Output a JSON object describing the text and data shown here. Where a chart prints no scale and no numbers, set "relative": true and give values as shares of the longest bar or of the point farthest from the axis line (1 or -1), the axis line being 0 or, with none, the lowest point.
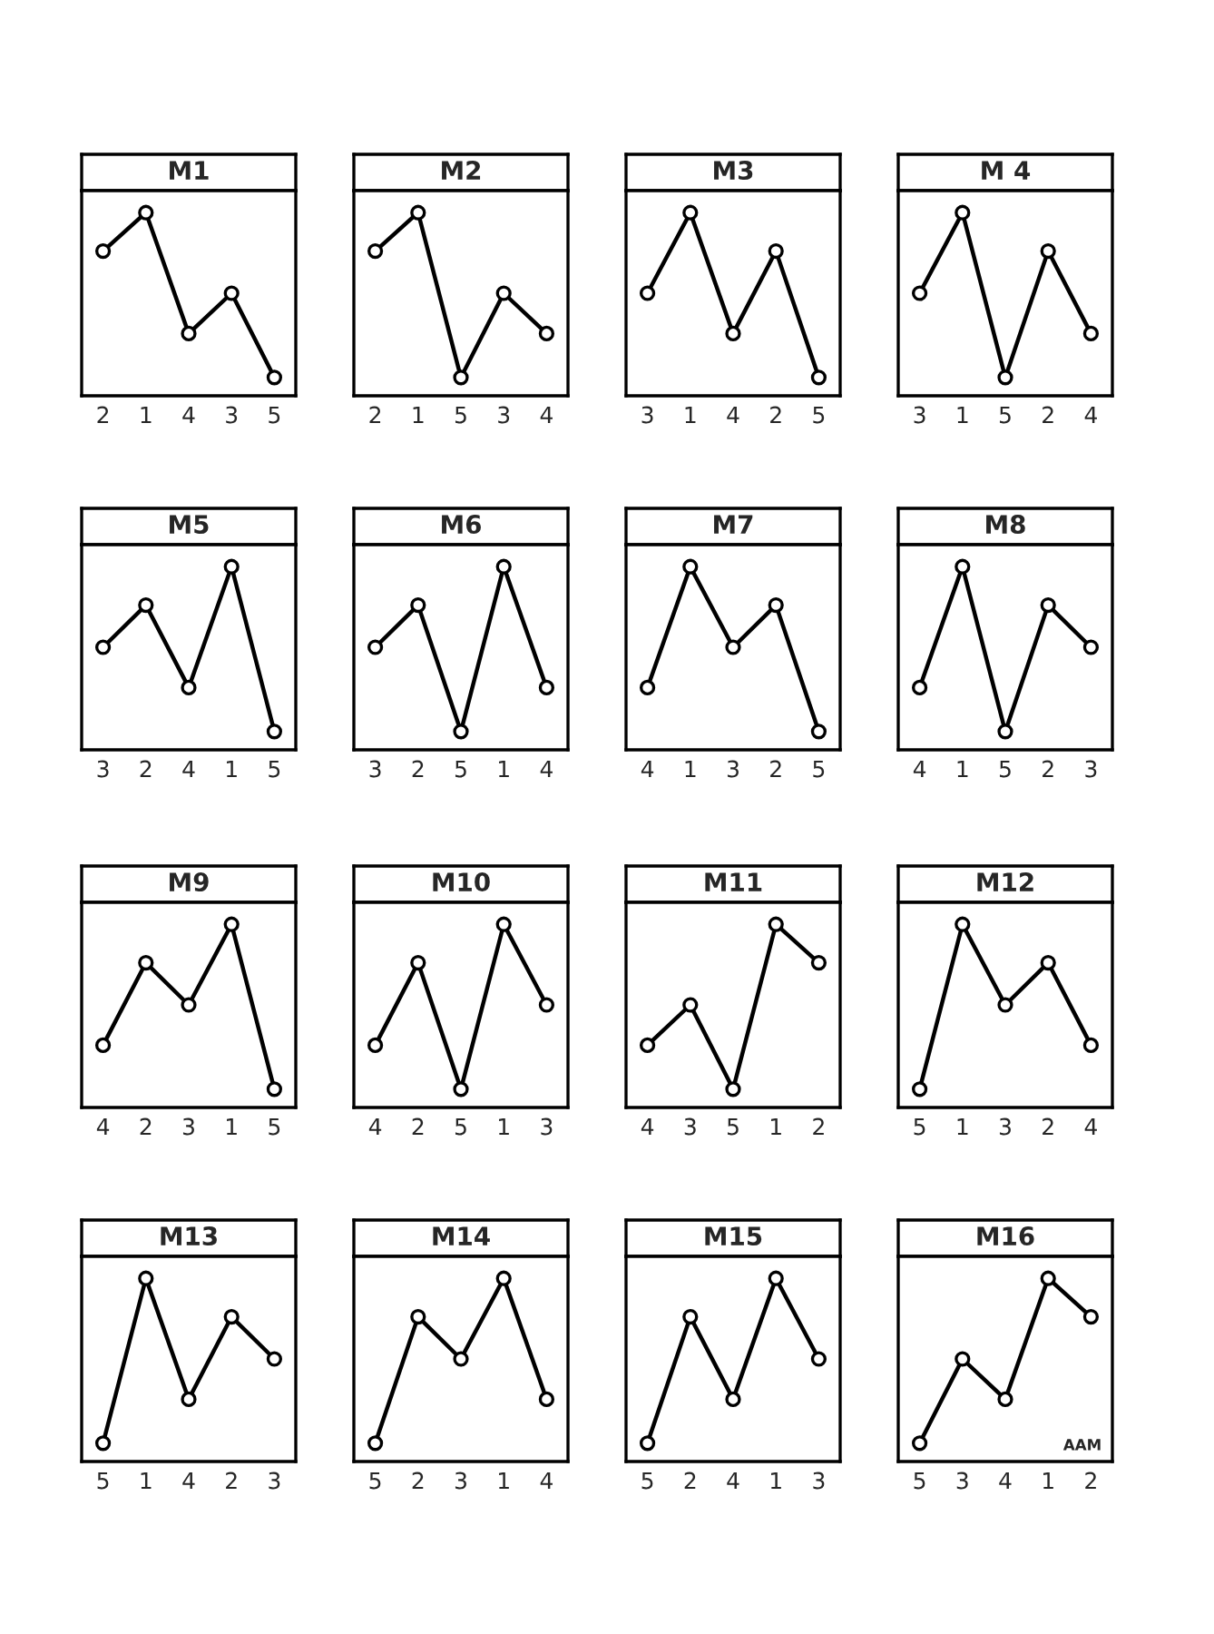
{
  "chart_data": [
    {
      "type": "line",
      "title": "M1",
      "categories": [
        "2",
        "1",
        "4",
        "3",
        "5"
      ],
      "relative": true,
      "tick_labels": "x",
      "marker": "circle",
      "series": [
        {
          "color": "#000000",
          "values": [
            0.79,
            1.0,
            0.34,
            0.56,
            0.1
          ]
        }
      ]
    },
    {
      "type": "line",
      "title": "M2",
      "categories": [
        "2",
        "1",
        "5",
        "3",
        "4"
      ],
      "relative": true,
      "tick_labels": "x",
      "marker": "circle",
      "series": [
        {
          "color": "#000000",
          "values": [
            0.79,
            1.0,
            0.1,
            0.56,
            0.34
          ]
        }
      ]
    },
    {
      "type": "line",
      "title": "M3",
      "categories": [
        "3",
        "1",
        "4",
        "2",
        "5"
      ],
      "relative": true,
      "tick_labels": "x",
      "marker": "circle",
      "series": [
        {
          "color": "#000000",
          "values": [
            0.56,
            1.0,
            0.34,
            0.79,
            0.1
          ]
        }
      ]
    },
    {
      "type": "line",
      "title": "M 4",
      "categories": [
        "3",
        "1",
        "5",
        "2",
        "4"
      ],
      "relative": true,
      "tick_labels": "x",
      "marker": "circle",
      "series": [
        {
          "color": "#000000",
          "values": [
            0.56,
            1.0,
            0.1,
            0.79,
            0.34
          ]
        }
      ]
    },
    {
      "type": "line",
      "title": "M5",
      "categories": [
        "3",
        "2",
        "4",
        "1",
        "5"
      ],
      "relative": true,
      "tick_labels": "x",
      "marker": "circle",
      "series": [
        {
          "color": "#000000",
          "values": [
            0.56,
            0.79,
            0.34,
            1.0,
            0.1
          ]
        }
      ]
    },
    {
      "type": "line",
      "title": "M6",
      "categories": [
        "3",
        "2",
        "5",
        "1",
        "4"
      ],
      "relative": true,
      "tick_labels": "x",
      "marker": "circle",
      "series": [
        {
          "color": "#000000",
          "values": [
            0.56,
            0.79,
            0.1,
            1.0,
            0.34
          ]
        }
      ]
    },
    {
      "type": "line",
      "title": "M7",
      "categories": [
        "4",
        "1",
        "3",
        "2",
        "5"
      ],
      "relative": true,
      "tick_labels": "x",
      "marker": "circle",
      "series": [
        {
          "color": "#000000",
          "values": [
            0.34,
            1.0,
            0.56,
            0.79,
            0.1
          ]
        }
      ]
    },
    {
      "type": "line",
      "title": "M8",
      "categories": [
        "4",
        "1",
        "5",
        "2",
        "3"
      ],
      "relative": true,
      "tick_labels": "x",
      "marker": "circle",
      "series": [
        {
          "color": "#000000",
          "values": [
            0.34,
            1.0,
            0.1,
            0.79,
            0.56
          ]
        }
      ]
    },
    {
      "type": "line",
      "title": "M9",
      "categories": [
        "4",
        "2",
        "3",
        "1",
        "5"
      ],
      "relative": true,
      "tick_labels": "x",
      "marker": "circle",
      "series": [
        {
          "color": "#000000",
          "values": [
            0.34,
            0.79,
            0.56,
            1.0,
            0.1
          ]
        }
      ]
    },
    {
      "type": "line",
      "title": "M10",
      "categories": [
        "4",
        "2",
        "5",
        "1",
        "3"
      ],
      "relative": true,
      "tick_labels": "x",
      "marker": "circle",
      "series": [
        {
          "color": "#000000",
          "values": [
            0.34,
            0.79,
            0.1,
            1.0,
            0.56
          ]
        }
      ]
    },
    {
      "type": "line",
      "title": "M11",
      "categories": [
        "4",
        "3",
        "5",
        "1",
        "2"
      ],
      "relative": true,
      "tick_labels": "x",
      "marker": "circle",
      "series": [
        {
          "color": "#000000",
          "values": [
            0.34,
            0.56,
            0.1,
            1.0,
            0.79
          ]
        }
      ]
    },
    {
      "type": "line",
      "title": "M12",
      "categories": [
        "5",
        "1",
        "3",
        "2",
        "4"
      ],
      "relative": true,
      "tick_labels": "x",
      "marker": "circle",
      "series": [
        {
          "color": "#000000",
          "values": [
            0.1,
            1.0,
            0.56,
            0.79,
            0.34
          ]
        }
      ]
    },
    {
      "type": "line",
      "title": "M13",
      "categories": [
        "5",
        "1",
        "4",
        "2",
        "3"
      ],
      "relative": true,
      "tick_labels": "x",
      "marker": "circle",
      "series": [
        {
          "color": "#000000",
          "values": [
            0.1,
            1.0,
            0.34,
            0.79,
            0.56
          ]
        }
      ]
    },
    {
      "type": "line",
      "title": "M14",
      "categories": [
        "5",
        "2",
        "3",
        "1",
        "4"
      ],
      "relative": true,
      "tick_labels": "x",
      "marker": "circle",
      "series": [
        {
          "color": "#000000",
          "values": [
            0.1,
            0.79,
            0.56,
            1.0,
            0.34
          ]
        }
      ]
    },
    {
      "type": "line",
      "title": "M15",
      "categories": [
        "5",
        "2",
        "4",
        "1",
        "3"
      ],
      "relative": true,
      "tick_labels": "x",
      "marker": "circle",
      "series": [
        {
          "color": "#000000",
          "values": [
            0.1,
            0.79,
            0.34,
            1.0,
            0.56
          ]
        }
      ]
    },
    {
      "type": "line",
      "title": "M16",
      "categories": [
        "5",
        "3",
        "4",
        "1",
        "2"
      ],
      "relative": true,
      "tick_labels": "x",
      "marker": "circle",
      "annotations": [
        "AAM"
      ],
      "series": [
        {
          "color": "#000000",
          "values": [
            0.1,
            0.56,
            0.34,
            1.0,
            0.79
          ]
        }
      ]
    }
  ]
}
